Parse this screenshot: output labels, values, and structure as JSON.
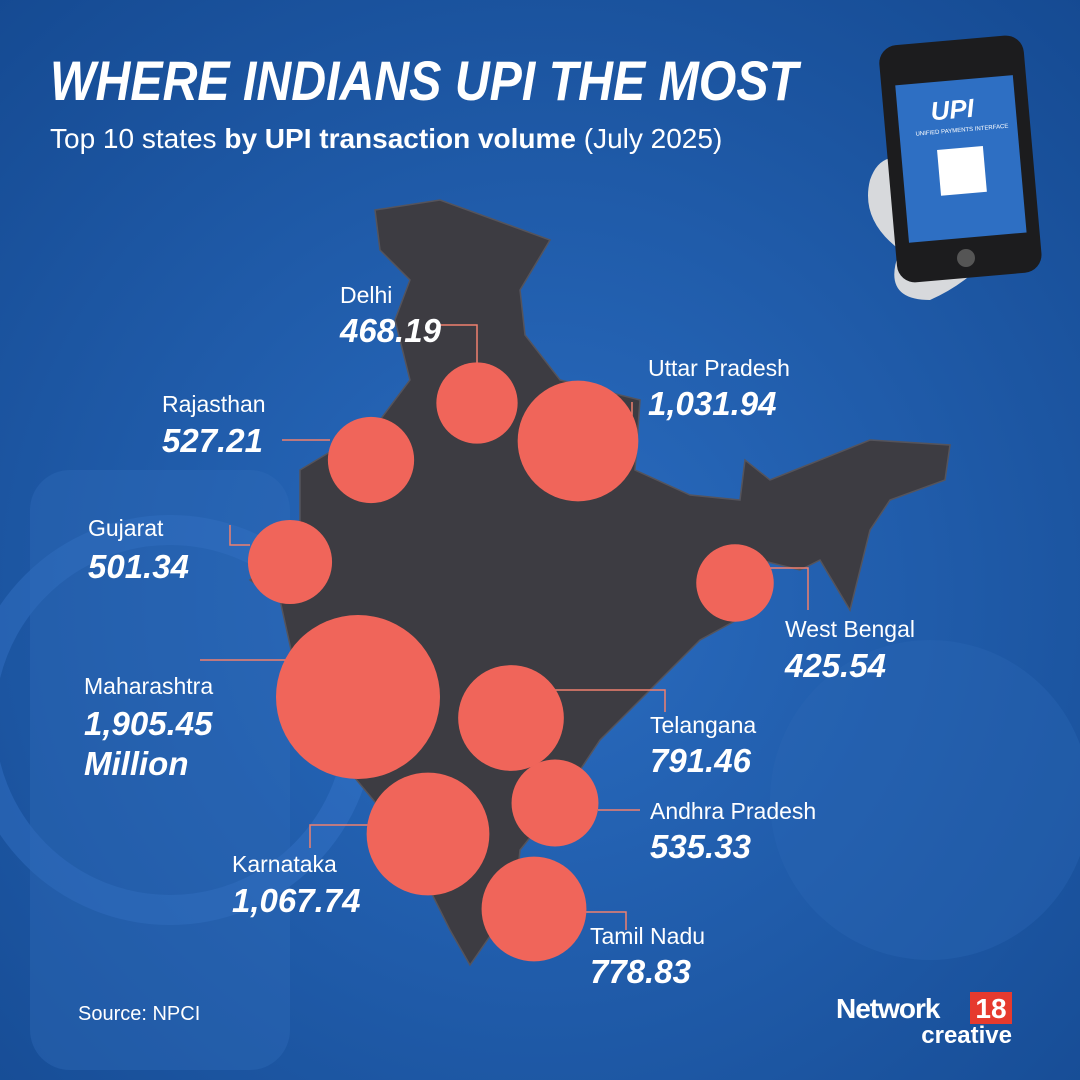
{
  "header": {
    "title": "WHERE INDIANS UPI THE MOST",
    "subtitle": {
      "lead": "Top 10 states",
      "bold": "by UPI transaction volume",
      "tail": "(July 2025)"
    }
  },
  "phone": {
    "logo": "UPI",
    "logo_sub": "UNIFIED PAYMENTS INTERFACE"
  },
  "map": {
    "unit": "Million",
    "states": [
      {
        "name": "Delhi",
        "value": 468.19,
        "value_label": "468.19"
      },
      {
        "name": "Uttar Pradesh",
        "value": 1031.94,
        "value_label": "1,031.94"
      },
      {
        "name": "Rajasthan",
        "value": 527.21,
        "value_label": "527.21"
      },
      {
        "name": "Gujarat",
        "value": 501.34,
        "value_label": "501.34"
      },
      {
        "name": "West Bengal",
        "value": 425.54,
        "value_label": "425.54"
      },
      {
        "name": "Maharashtra",
        "value": 1905.45,
        "value_label": "1,905.45"
      },
      {
        "name": "Telangana",
        "value": 791.46,
        "value_label": "791.46"
      },
      {
        "name": "Andhra Pradesh",
        "value": 535.33,
        "value_label": "535.33"
      },
      {
        "name": "Karnataka",
        "value": 1067.74,
        "value_label": "1,067.74"
      },
      {
        "name": "Tamil Nadu",
        "value": 778.83,
        "value_label": "778.83"
      }
    ]
  },
  "footer": {
    "source": "Source: NPCI",
    "brand": "Network",
    "brand_number": "18",
    "brand_sub": "creative"
  }
}
